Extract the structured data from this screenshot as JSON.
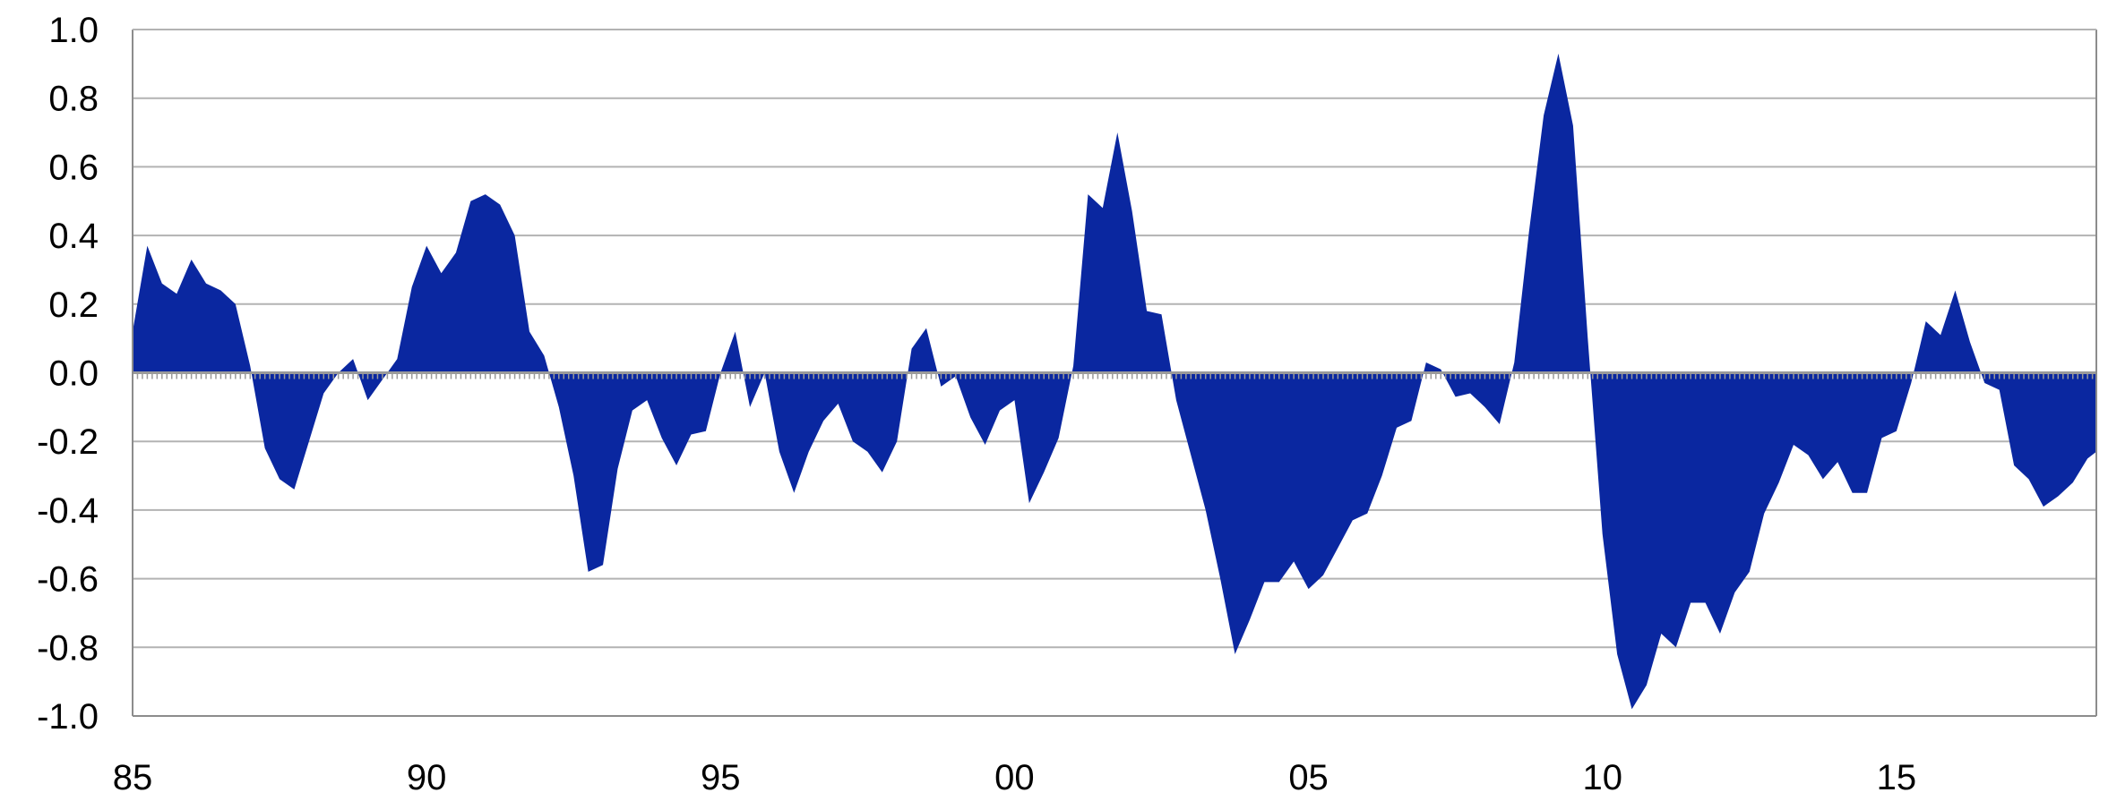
{
  "chart_data": {
    "type": "area",
    "title": "",
    "xlabel": "",
    "ylabel": "",
    "xlim": [
      1985,
      2018.4
    ],
    "ylim": [
      -1.0,
      1.0
    ],
    "grid": true,
    "legend": "none",
    "color": "#0a27a0",
    "x_ticks": [
      {
        "value": 1985,
        "label": "85"
      },
      {
        "value": 1990,
        "label": "90"
      },
      {
        "value": 1995,
        "label": "95"
      },
      {
        "value": 2000,
        "label": "00"
      },
      {
        "value": 2005,
        "label": "05"
      },
      {
        "value": 2010,
        "label": "10"
      },
      {
        "value": 2015,
        "label": "15"
      }
    ],
    "y_ticks": [
      {
        "value": 1.0,
        "label": "1.0"
      },
      {
        "value": 0.8,
        "label": "0.8"
      },
      {
        "value": 0.6,
        "label": "0.6"
      },
      {
        "value": 0.4,
        "label": "0.4"
      },
      {
        "value": 0.2,
        "label": "0.2"
      },
      {
        "value": 0.0,
        "label": "0.0"
      },
      {
        "value": -0.2,
        "label": "-0.2"
      },
      {
        "value": -0.4,
        "label": "-0.4"
      },
      {
        "value": -0.6,
        "label": "-0.6"
      },
      {
        "value": -0.8,
        "label": "-0.8"
      },
      {
        "value": -1.0,
        "label": "-1.0"
      }
    ],
    "x": [
      1985.0,
      1985.25,
      1985.5,
      1985.75,
      1986.0,
      1986.25,
      1986.5,
      1986.75,
      1987.0,
      1987.25,
      1987.5,
      1987.75,
      1988.0,
      1988.25,
      1988.5,
      1988.75,
      1989.0,
      1989.25,
      1989.5,
      1989.75,
      1990.0,
      1990.25,
      1990.5,
      1990.75,
      1991.0,
      1991.25,
      1991.5,
      1991.75,
      1992.0,
      1992.25,
      1992.5,
      1992.75,
      1993.0,
      1993.25,
      1993.5,
      1993.75,
      1994.0,
      1994.25,
      1994.5,
      1994.75,
      1995.0,
      1995.25,
      1995.5,
      1995.75,
      1996.0,
      1996.25,
      1996.5,
      1996.75,
      1997.0,
      1997.25,
      1997.5,
      1997.75,
      1998.0,
      1998.25,
      1998.5,
      1998.75,
      1999.0,
      1999.25,
      1999.5,
      1999.75,
      2000.0,
      2000.25,
      2000.5,
      2000.75,
      2001.0,
      2001.25,
      2001.5,
      2001.75,
      2002.0,
      2002.25,
      2002.5,
      2002.75,
      2003.0,
      2003.25,
      2003.5,
      2003.75,
      2004.0,
      2004.25,
      2004.5,
      2004.75,
      2005.0,
      2005.25,
      2005.5,
      2005.75,
      2006.0,
      2006.25,
      2006.5,
      2006.75,
      2007.0,
      2007.25,
      2007.5,
      2007.75,
      2008.0,
      2008.25,
      2008.5,
      2008.75,
      2009.0,
      2009.25,
      2009.5,
      2009.75,
      2010.0,
      2010.25,
      2010.5,
      2010.75,
      2011.0,
      2011.25,
      2011.5,
      2011.75,
      2012.0,
      2012.25,
      2012.5,
      2012.75,
      2013.0,
      2013.25,
      2013.5,
      2013.75,
      2014.0,
      2014.25,
      2014.5,
      2014.75,
      2015.0,
      2015.25,
      2015.5,
      2015.75,
      2016.0,
      2016.25,
      2016.5,
      2016.75,
      2017.0,
      2017.25,
      2017.5,
      2017.75,
      2018.0,
      2018.25,
      2018.4
    ],
    "values": [
      0.12,
      0.37,
      0.26,
      0.23,
      0.33,
      0.26,
      0.24,
      0.2,
      0.02,
      -0.22,
      -0.31,
      -0.34,
      -0.2,
      -0.06,
      0.0,
      0.04,
      -0.08,
      -0.02,
      0.04,
      0.25,
      0.37,
      0.29,
      0.35,
      0.5,
      0.52,
      0.49,
      0.4,
      0.12,
      0.05,
      -0.1,
      -0.3,
      -0.58,
      -0.56,
      -0.28,
      -0.11,
      -0.08,
      -0.19,
      -0.27,
      -0.18,
      -0.17,
      0.0,
      0.12,
      -0.1,
      0.0,
      -0.23,
      -0.35,
      -0.23,
      -0.14,
      -0.09,
      -0.2,
      -0.23,
      -0.29,
      -0.2,
      0.07,
      0.13,
      -0.04,
      -0.01,
      -0.13,
      -0.21,
      -0.11,
      -0.08,
      -0.38,
      -0.29,
      -0.19,
      0.02,
      0.52,
      0.48,
      0.7,
      0.47,
      0.18,
      0.17,
      -0.08,
      -0.24,
      -0.4,
      -0.6,
      -0.82,
      -0.72,
      -0.61,
      -0.61,
      -0.55,
      -0.63,
      -0.59,
      -0.51,
      -0.43,
      -0.41,
      -0.3,
      -0.16,
      -0.14,
      0.03,
      0.01,
      -0.07,
      -0.06,
      -0.1,
      -0.15,
      0.03,
      0.41,
      0.75,
      0.93,
      0.72,
      0.1,
      -0.47,
      -0.82,
      -0.98,
      -0.91,
      -0.76,
      -0.8,
      -0.67,
      -0.67,
      -0.76,
      -0.64,
      -0.58,
      -0.41,
      -0.32,
      -0.21,
      -0.24,
      -0.31,
      -0.26,
      -0.35,
      -0.35,
      -0.19,
      -0.17,
      -0.03,
      0.15,
      0.11,
      0.24,
      0.09,
      -0.03,
      -0.05,
      -0.27,
      -0.31,
      -0.39,
      -0.36,
      -0.32,
      -0.25,
      -0.23
    ]
  }
}
